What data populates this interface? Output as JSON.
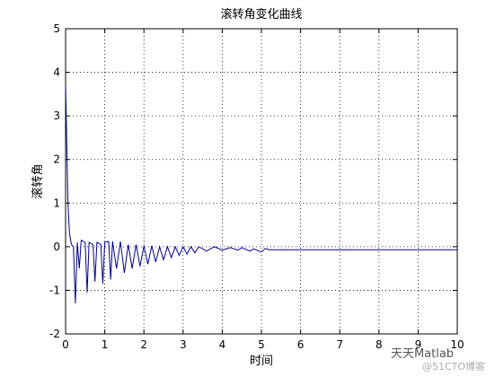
{
  "chart_data": {
    "type": "line",
    "title": "滚转角变化曲线",
    "x_label": "时间",
    "y_label": "滚转角",
    "x": [
      0,
      0.03,
      0.06,
      0.1,
      0.15,
      0.2,
      0.25,
      0.3,
      0.35,
      0.4,
      0.5,
      0.55,
      0.6,
      0.7,
      0.75,
      0.8,
      0.9,
      0.95,
      1.0,
      1.1,
      1.15,
      1.2,
      1.3,
      1.4,
      1.5,
      1.6,
      1.7,
      1.8,
      1.9,
      2.0,
      2.1,
      2.2,
      2.3,
      2.4,
      2.5,
      2.6,
      2.7,
      2.8,
      2.9,
      3.0,
      3.1,
      3.2,
      3.3,
      3.4,
      3.6,
      3.8,
      4.0,
      4.2,
      4.4,
      4.5,
      4.7,
      4.8,
      5.0,
      5.1,
      5.2,
      10
    ],
    "series": [
      {
        "name": "滚转角",
        "color": "#00008b",
        "values": [
          3.7,
          2.4,
          1.0,
          0.3,
          0.05,
          0,
          -1.3,
          0.1,
          -0.5,
          0.15,
          0.1,
          -1.05,
          0.1,
          0.05,
          -0.8,
          0.1,
          0.05,
          -0.85,
          0.1,
          0.12,
          -0.75,
          0.12,
          -0.5,
          0.12,
          -0.6,
          0.05,
          -0.5,
          0.05,
          -0.45,
          0.02,
          -0.4,
          0.02,
          -0.35,
          0,
          -0.3,
          0,
          -0.25,
          0,
          -0.2,
          0,
          -0.17,
          0,
          -0.14,
          0,
          -0.1,
          0,
          -0.08,
          -0.02,
          -0.08,
          -0.02,
          -0.1,
          -0.05,
          -0.12,
          -0.04,
          -0.07,
          -0.07
        ]
      }
    ],
    "xlim": [
      0,
      10
    ],
    "xticks": [
      0,
      1,
      2,
      3,
      4,
      5,
      6,
      7,
      8,
      9,
      10
    ],
    "ylim": [
      -2,
      5
    ],
    "yticks": [
      -2,
      -1,
      0,
      1,
      2,
      3,
      4,
      5
    ],
    "grid": true,
    "watermark": [
      "天天Matlab",
      "@51CTO博客"
    ]
  }
}
